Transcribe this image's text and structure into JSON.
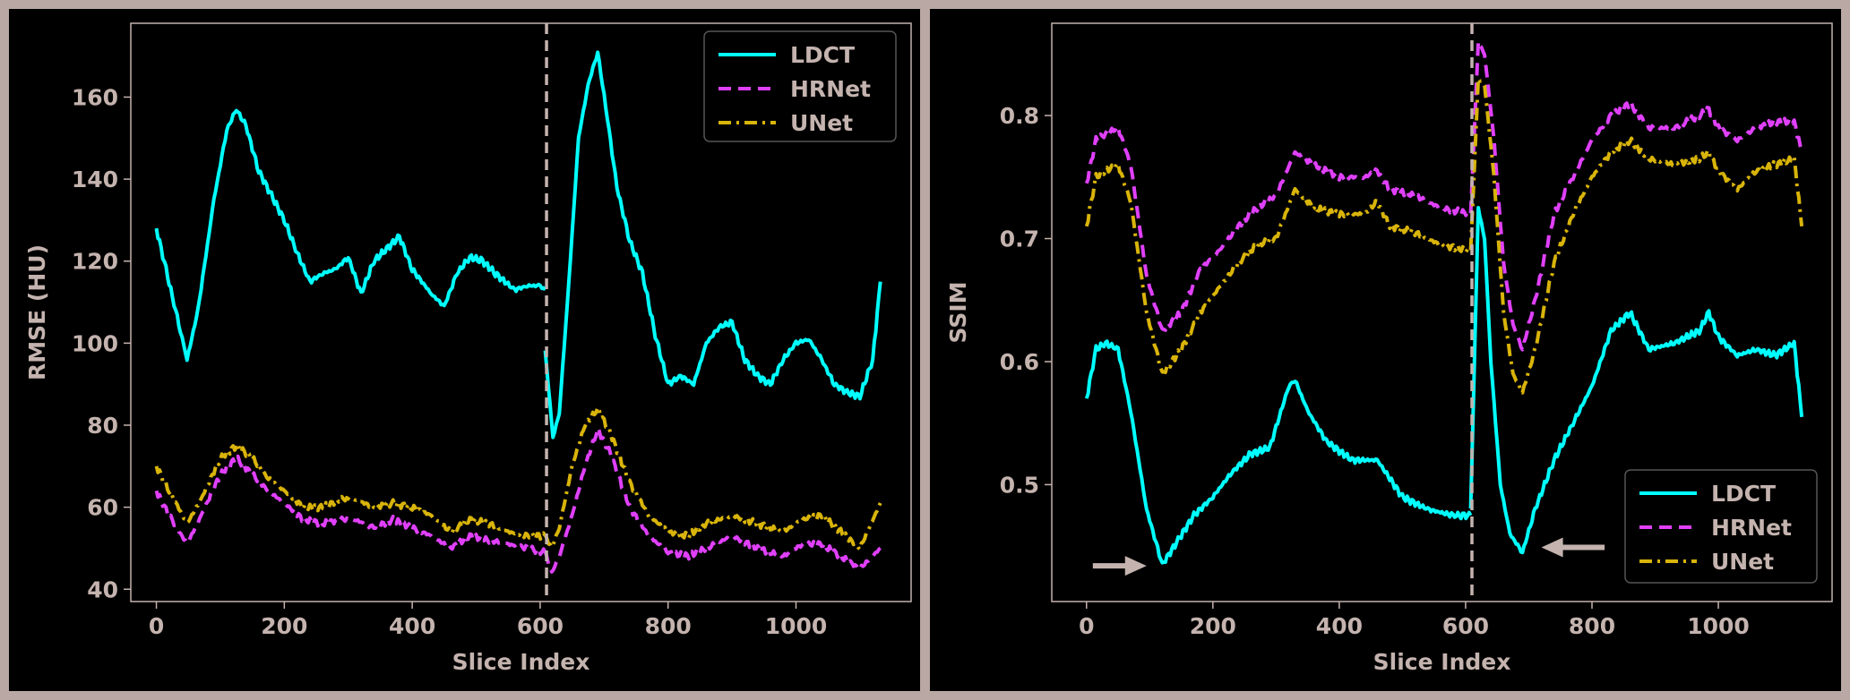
{
  "chart_data": [
    {
      "type": "line",
      "title": "",
      "xlabel": "Slice Index",
      "ylabel": "RMSE (HU)",
      "xlim": [
        -40,
        1180
      ],
      "ylim": [
        37,
        178
      ],
      "xticks": [
        0,
        200,
        400,
        600,
        800,
        1000
      ],
      "yticks": [
        40,
        60,
        80,
        100,
        120,
        140,
        160
      ],
      "vline_x": 610,
      "legend_position": "upper right",
      "series": [
        {
          "name": "LDCT",
          "style": "solid",
          "color": "#00ffff",
          "x": [
            0,
            15,
            30,
            48,
            65,
            90,
            110,
            125,
            140,
            160,
            180,
            200,
            220,
            240,
            260,
            280,
            300,
            320,
            340,
            360,
            380,
            400,
            430,
            450,
            470,
            490,
            510,
            530,
            560,
            580,
            600,
            608
          ],
          "y": [
            128,
            118,
            108,
            96,
            108,
            135,
            152,
            157,
            153,
            142,
            136,
            130,
            122,
            115,
            117,
            118,
            121,
            112,
            120,
            123,
            126,
            118,
            112,
            109,
            117,
            121,
            120,
            117,
            113,
            114,
            114,
            113
          ],
          "x2": [
            608,
            620,
            630,
            645,
            660,
            675,
            690,
            705,
            720,
            740,
            760,
            780,
            800,
            820,
            840,
            860,
            880,
            900,
            920,
            940,
            960,
            980,
            1000,
            1020,
            1040,
            1060,
            1080,
            1100,
            1120,
            1132
          ],
          "y2": [
            98,
            77,
            83,
            115,
            150,
            163,
            171,
            155,
            138,
            125,
            117,
            102,
            90,
            92,
            90,
            100,
            104,
            105,
            96,
            92,
            90,
            96,
            100,
            101,
            96,
            90,
            88,
            87,
            96,
            115
          ]
        },
        {
          "name": "HRNet",
          "style": "dashed",
          "color": "#e040fb",
          "x": [
            0,
            20,
            48,
            70,
            100,
            125,
            150,
            175,
            200,
            230,
            260,
            290,
            310,
            340,
            370,
            400,
            430,
            460,
            490,
            520,
            550,
            580,
            608
          ],
          "y": [
            64,
            58,
            51,
            58,
            68,
            72,
            68,
            64,
            61,
            57,
            56,
            57,
            57,
            55,
            57,
            55,
            53,
            50,
            53,
            52,
            51,
            50,
            49
          ],
          "x2": [
            608,
            618,
            630,
            650,
            670,
            690,
            710,
            740,
            770,
            800,
            830,
            860,
            900,
            940,
            980,
            1010,
            1040,
            1070,
            1100,
            1132
          ],
          "y2": [
            49,
            44,
            48,
            58,
            70,
            79,
            73,
            60,
            53,
            49,
            48,
            50,
            53,
            50,
            48,
            51,
            51,
            48,
            45,
            50
          ]
        },
        {
          "name": "UNet",
          "style": "dashdot",
          "color": "#d9b40a",
          "x": [
            0,
            20,
            48,
            70,
            100,
            125,
            150,
            175,
            200,
            230,
            260,
            290,
            310,
            340,
            370,
            400,
            430,
            460,
            490,
            520,
            550,
            580,
            608
          ],
          "y": [
            70,
            64,
            56,
            62,
            72,
            75,
            72,
            67,
            64,
            60,
            60,
            62,
            62,
            60,
            61,
            60,
            58,
            54,
            57,
            56,
            54,
            53,
            53
          ],
          "x2": [
            608,
            618,
            630,
            650,
            670,
            690,
            710,
            740,
            770,
            800,
            830,
            860,
            900,
            940,
            980,
            1010,
            1040,
            1070,
            1100,
            1132
          ],
          "y2": [
            53,
            50,
            55,
            70,
            80,
            84,
            78,
            66,
            58,
            54,
            53,
            56,
            58,
            56,
            54,
            57,
            58,
            54,
            50,
            61
          ]
        }
      ]
    },
    {
      "type": "line",
      "title": "",
      "xlabel": "Slice Index",
      "ylabel": "SSIM",
      "xlim": [
        -55,
        1180
      ],
      "ylim": [
        0.405,
        0.875
      ],
      "xticks": [
        0,
        200,
        400,
        600,
        800,
        1000
      ],
      "yticks": [
        0.5,
        0.6,
        0.7,
        0.8
      ],
      "vline_x": 610,
      "legend_position": "lower right",
      "arrows": [
        {
          "x_from": 10,
          "x_to": 95,
          "y": 0.434,
          "direction": "right"
        },
        {
          "x_from": 820,
          "x_to": 720,
          "y": 0.449,
          "direction": "left"
        }
      ],
      "series": [
        {
          "name": "LDCT",
          "style": "solid",
          "color": "#00ffff",
          "x": [
            0,
            15,
            30,
            50,
            70,
            95,
            120,
            145,
            170,
            200,
            230,
            260,
            290,
            320,
            330,
            350,
            380,
            420,
            460,
            500,
            540,
            580,
            608
          ],
          "y": [
            0.57,
            0.61,
            0.615,
            0.61,
            0.56,
            0.48,
            0.435,
            0.455,
            0.475,
            0.49,
            0.51,
            0.525,
            0.53,
            0.58,
            0.585,
            0.56,
            0.535,
            0.52,
            0.52,
            0.49,
            0.48,
            0.475,
            0.475
          ],
          "x2": [
            608,
            620,
            630,
            640,
            655,
            670,
            690,
            710,
            740,
            770,
            800,
            830,
            860,
            890,
            930,
            970,
            985,
            1000,
            1030,
            1060,
            1090,
            1120,
            1132
          ],
          "y2": [
            0.48,
            0.725,
            0.7,
            0.6,
            0.5,
            0.46,
            0.445,
            0.48,
            0.52,
            0.55,
            0.58,
            0.625,
            0.64,
            0.61,
            0.615,
            0.625,
            0.64,
            0.62,
            0.605,
            0.61,
            0.605,
            0.615,
            0.555
          ]
        },
        {
          "name": "HRNet",
          "style": "dashed",
          "color": "#e040fb",
          "x": [
            0,
            15,
            30,
            50,
            70,
            95,
            120,
            150,
            180,
            210,
            240,
            270,
            300,
            330,
            360,
            400,
            440,
            460,
            480,
            520,
            560,
            608
          ],
          "y": [
            0.745,
            0.78,
            0.785,
            0.79,
            0.76,
            0.67,
            0.625,
            0.64,
            0.675,
            0.69,
            0.71,
            0.725,
            0.735,
            0.77,
            0.76,
            0.75,
            0.75,
            0.755,
            0.74,
            0.735,
            0.725,
            0.72
          ],
          "x2": [
            608,
            620,
            630,
            645,
            660,
            675,
            690,
            710,
            740,
            770,
            800,
            830,
            860,
            890,
            930,
            970,
            985,
            1000,
            1030,
            1060,
            1090,
            1120,
            1132
          ],
          "y2": [
            0.72,
            0.86,
            0.85,
            0.78,
            0.68,
            0.63,
            0.61,
            0.65,
            0.72,
            0.75,
            0.78,
            0.8,
            0.81,
            0.79,
            0.79,
            0.8,
            0.805,
            0.79,
            0.78,
            0.79,
            0.795,
            0.795,
            0.77
          ]
        },
        {
          "name": "UNet",
          "style": "dashdot",
          "color": "#d9b40a",
          "x": [
            0,
            15,
            30,
            50,
            70,
            95,
            120,
            150,
            180,
            210,
            240,
            270,
            300,
            330,
            360,
            400,
            440,
            460,
            480,
            520,
            560,
            608
          ],
          "y": [
            0.71,
            0.75,
            0.755,
            0.76,
            0.73,
            0.64,
            0.59,
            0.61,
            0.64,
            0.66,
            0.68,
            0.695,
            0.7,
            0.74,
            0.725,
            0.72,
            0.72,
            0.73,
            0.71,
            0.705,
            0.695,
            0.69
          ],
          "x2": [
            608,
            620,
            630,
            645,
            660,
            675,
            690,
            710,
            740,
            770,
            800,
            830,
            860,
            890,
            930,
            970,
            985,
            1000,
            1030,
            1060,
            1090,
            1120,
            1132
          ],
          "y2": [
            0.69,
            0.83,
            0.825,
            0.75,
            0.64,
            0.59,
            0.575,
            0.61,
            0.68,
            0.72,
            0.75,
            0.77,
            0.78,
            0.765,
            0.76,
            0.765,
            0.77,
            0.755,
            0.74,
            0.755,
            0.76,
            0.765,
            0.71
          ]
        }
      ]
    }
  ],
  "colors": {
    "panel_bg": "#000000",
    "border": "#b9a8a3",
    "text": "#c4b3ae",
    "vline": "#c4b3ae"
  }
}
